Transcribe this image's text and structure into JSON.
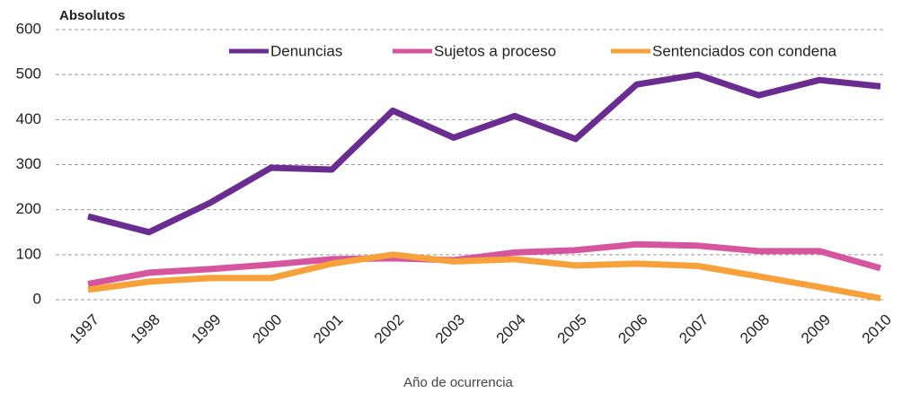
{
  "chart_data": {
    "type": "line",
    "ylabel": "Absolutos",
    "xlabel": "Año de ocurrencia",
    "categories": [
      "1997",
      "1998",
      "1999",
      "2000",
      "2001",
      "2002",
      "2003",
      "2004",
      "2005",
      "2006",
      "2007",
      "2008",
      "2009",
      "2010"
    ],
    "series": [
      {
        "name": "Denuncias",
        "color": "#6a2c91",
        "values": [
          185,
          150,
          215,
          293,
          289,
          420,
          360,
          408,
          357,
          478,
          500,
          454,
          488,
          474
        ]
      },
      {
        "name": "Sujetos a proceso",
        "color": "#d6559f",
        "values": [
          35,
          60,
          68,
          78,
          90,
          92,
          88,
          105,
          110,
          123,
          120,
          108,
          108,
          70
        ]
      },
      {
        "name": "Sentenciados con condena",
        "color": "#f7a13a",
        "values": [
          22,
          40,
          48,
          48,
          80,
          100,
          85,
          90,
          76,
          80,
          75,
          52,
          28,
          3
        ]
      }
    ],
    "ylim": [
      0,
      600
    ],
    "yticks": [
      0,
      100,
      200,
      300,
      400,
      500,
      600
    ],
    "grid": true,
    "legend": "top"
  }
}
